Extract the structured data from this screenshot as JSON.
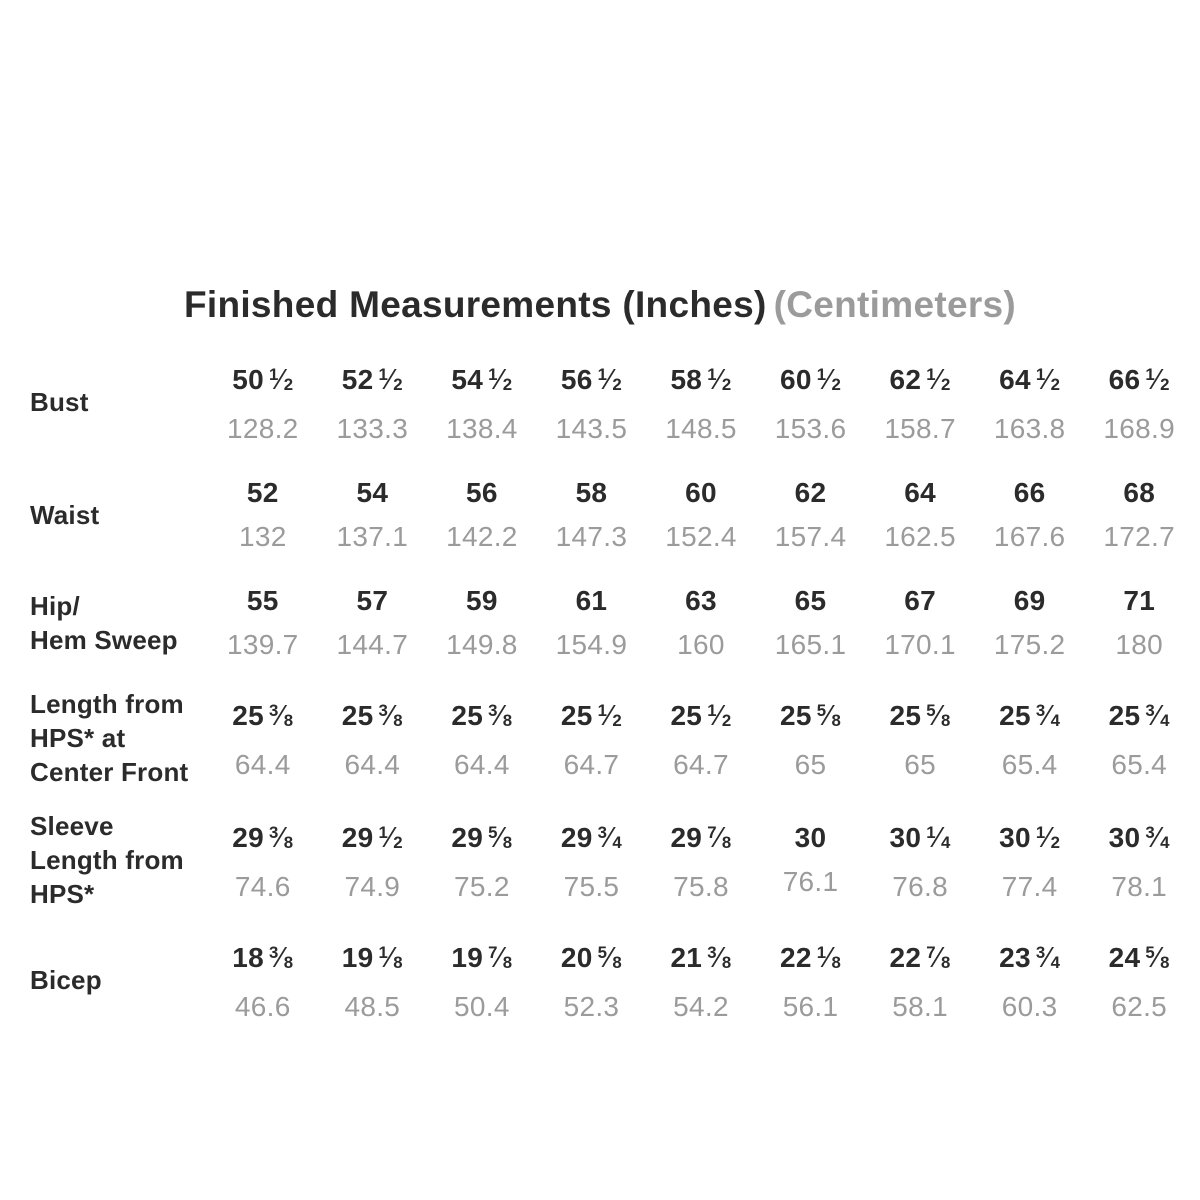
{
  "title": {
    "main": "Finished Measurements (Inches)",
    "secondary": "(Centimeters)"
  },
  "colors": {
    "text_dark": "#2b2b2b",
    "text_gray": "#9b9b9b",
    "background": "#ffffff"
  },
  "chart_data": {
    "type": "table",
    "title": "Finished Measurements (Inches) (Centimeters)",
    "units": [
      "inches",
      "centimeters"
    ],
    "column_count": 9,
    "rows": [
      {
        "label": "Bust",
        "label_lines": [
          "Bust"
        ],
        "inches": [
          "50 1/2",
          "52 1/2",
          "54 1/2",
          "56 1/2",
          "58 1/2",
          "60 1/2",
          "62 1/2",
          "64 1/2",
          "66 1/2"
        ],
        "cm": [
          "128.2",
          "133.3",
          "138.4",
          "143.5",
          "148.5",
          "153.6",
          "158.7",
          "163.8",
          "168.9"
        ]
      },
      {
        "label": "Waist",
        "label_lines": [
          "Waist"
        ],
        "inches": [
          "52",
          "54",
          "56",
          "58",
          "60",
          "62",
          "64",
          "66",
          "68"
        ],
        "cm": [
          "132",
          "137.1",
          "142.2",
          "147.3",
          "152.4",
          "157.4",
          "162.5",
          "167.6",
          "172.7"
        ]
      },
      {
        "label": "Hip/Hem Sweep",
        "label_lines": [
          "Hip/",
          "Hem Sweep"
        ],
        "inches": [
          "55",
          "57",
          "59",
          "61",
          "63",
          "65",
          "67",
          "69",
          "71"
        ],
        "cm": [
          "139.7",
          "144.7",
          "149.8",
          "154.9",
          "160",
          "165.1",
          "170.1",
          "175.2",
          "180"
        ]
      },
      {
        "label": "Length from HPS* at Center Front",
        "label_lines": [
          "Length from",
          "HPS* at",
          "Center Front"
        ],
        "inches": [
          "25 3/8",
          "25 3/8",
          "25 3/8",
          "25 1/2",
          "25 1/2",
          "25 5/8",
          "25 5/8",
          "25 3/4",
          "25 3/4"
        ],
        "cm": [
          "64.4",
          "64.4",
          "64.4",
          "64.7",
          "64.7",
          "65",
          "65",
          "65.4",
          "65.4"
        ]
      },
      {
        "label": "Sleeve Length from HPS*",
        "label_lines": [
          "Sleeve",
          "Length from",
          "HPS*"
        ],
        "inches": [
          "29 3/8",
          "29 1/2",
          "29 5/8",
          "29 3/4",
          "29 7/8",
          "30",
          "30 1/4",
          "30 1/2",
          "30 3/4"
        ],
        "cm": [
          "74.6",
          "74.9",
          "75.2",
          "75.5",
          "75.8",
          "76.1",
          "76.8",
          "77.4",
          "78.1"
        ]
      },
      {
        "label": "Bicep",
        "label_lines": [
          "Bicep"
        ],
        "inches": [
          "18 3/8",
          "19 1/8",
          "19 7/8",
          "20 5/8",
          "21 3/8",
          "22 1/8",
          "22 7/8",
          "23 3/4",
          "24 5/8"
        ],
        "cm": [
          "46.6",
          "48.5",
          "50.4",
          "52.3",
          "54.2",
          "56.1",
          "58.1",
          "60.3",
          "62.5"
        ]
      }
    ]
  }
}
